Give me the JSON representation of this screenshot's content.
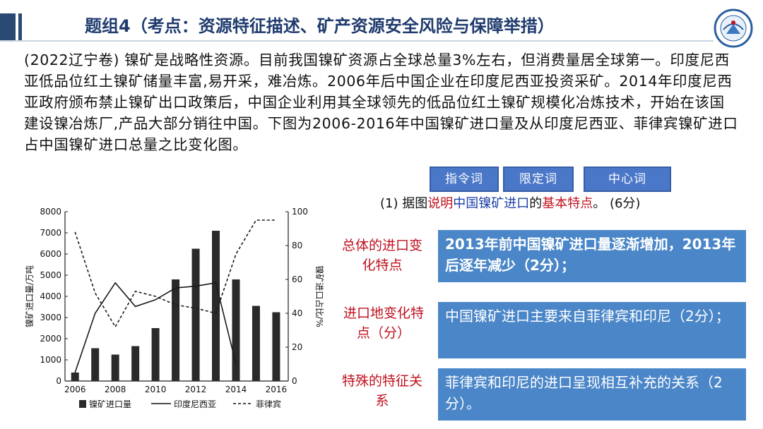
{
  "header": {
    "title": "题组4（考点：资源特征描述、矿产资源安全风险与保障举措）"
  },
  "passage": {
    "text": "(2022辽宁卷) 镍矿是战略性资源。目前我国镍矿资源占全球总量3%左右，但消费量居全球第一。印度尼西亚低品位红土镍矿储量丰富,易开采，难冶炼。2006年后中国企业在印度尼西亚投资采矿。2014年印度尼西亚政府颁布禁止镍矿出口政策后，中国企业利用其全球领先的低品位红土镍矿规模化冶炼技术，开始在该国建设镍冶炼厂,产品大部分销往中国。下图为2006-2016年中国镍矿进口量及从印度尼西亚、菲律宾镍矿进口占中国镍矿进口总量之比变化图。"
  },
  "tags": [
    "指令词",
    "限定词",
    "中心词"
  ],
  "question": {
    "prefix": "(1) 据图",
    "verb": "说明",
    "subject": "中国镍矿进口",
    "mid": "的",
    "focus": "基本特点",
    "suffix": "。 (6分)"
  },
  "answers": [
    {
      "label": "总体的进口变化特点",
      "text": "2013年前中国镍矿进口量逐渐增加，2013年后逐年减少（2分）；"
    },
    {
      "label": "进口地变化特点（分）",
      "text": "中国镍矿进口主要来自菲律宾和印尼（2分）；"
    },
    {
      "label": "特殊的特征关系",
      "text": "菲律宾和印尼的进口呈现相互补充的关系（2分）。"
    }
  ],
  "colors": {
    "title": "#1f3b6e",
    "accent_red": "#c0111f",
    "box_blue": "#4a86c8",
    "tag_blue": "#4a77c8"
  },
  "chart_data": {
    "type": "bar",
    "x": [
      2006,
      2007,
      2008,
      2009,
      2010,
      2011,
      2012,
      2013,
      2014,
      2015,
      2016
    ],
    "x_ticks": [
      "2006",
      "2008",
      "2010",
      "2012",
      "2014",
      "2016"
    ],
    "ylabel_left": "镍矿进口量/万吨",
    "ylabel_right": "镍矿进口占比/%",
    "ylim_left": [
      0,
      8000
    ],
    "ylim_right": [
      0,
      100
    ],
    "yticks_left": [
      "0",
      "1000",
      "2000",
      "3000",
      "4000",
      "5000",
      "6000",
      "7000",
      "8000"
    ],
    "yticks_right": [
      "0",
      "20",
      "40",
      "60",
      "80",
      "100"
    ],
    "series": [
      {
        "name": "镍矿进口量",
        "kind": "bar",
        "axis": "left",
        "values": [
          400,
          1550,
          1250,
          1650,
          2500,
          4800,
          6250,
          7100,
          4800,
          3550,
          3250
        ]
      },
      {
        "name": "印度尼西亚",
        "kind": "line",
        "axis": "right",
        "values": [
          5,
          40,
          58,
          44,
          48,
          55,
          56,
          58,
          10,
          null,
          null
        ]
      },
      {
        "name": "菲律宾",
        "kind": "dashed",
        "axis": "right",
        "values": [
          88,
          52,
          32,
          53,
          50,
          45,
          43,
          40,
          75,
          95,
          95
        ]
      }
    ]
  }
}
